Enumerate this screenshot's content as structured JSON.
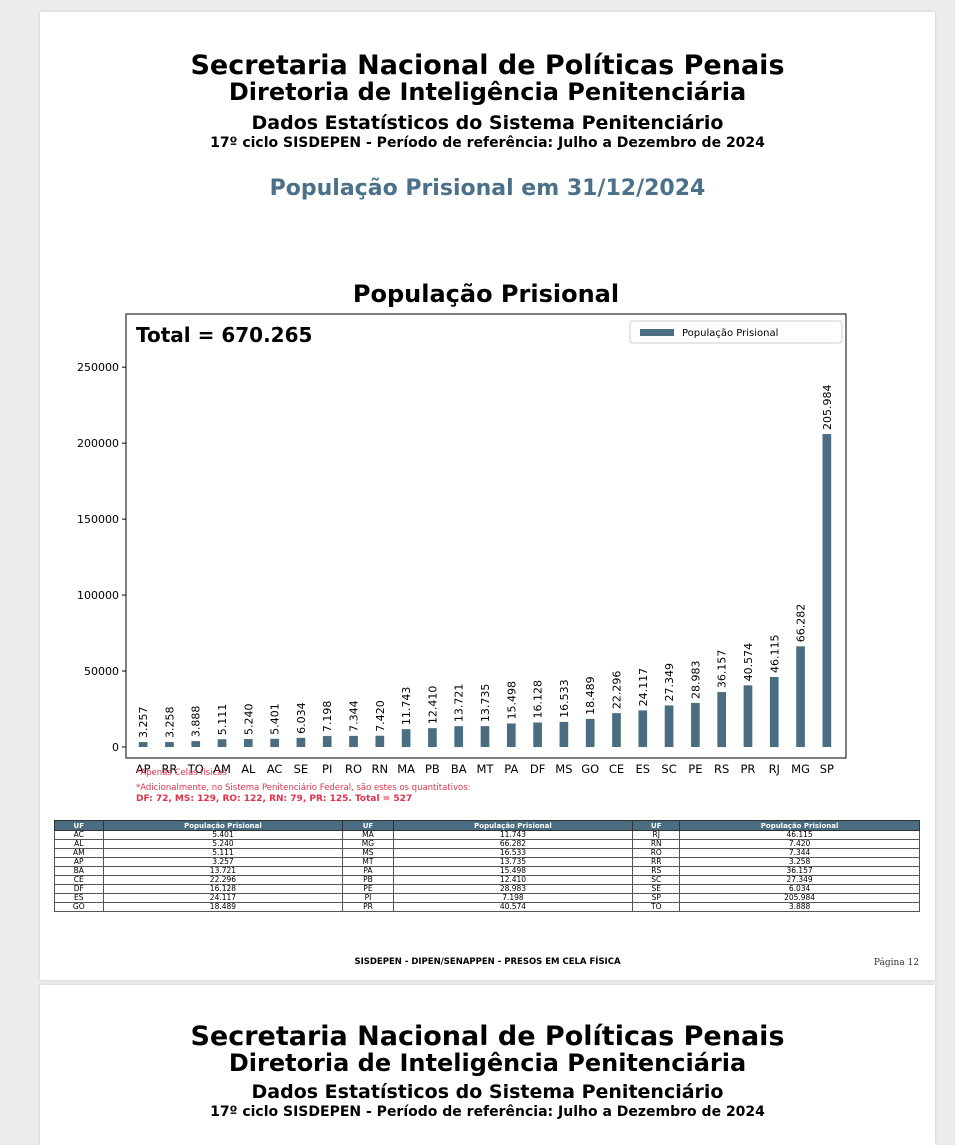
{
  "header": {
    "org": "Secretaria Nacional de Políticas Penais",
    "dept": "Diretoria de Inteligência Penitenciária",
    "report": "Dados Estatísticos do Sistema Penitenciário",
    "cycle": "17º ciclo SISDEPEN - Período de referência: Julho a Dezembro de 2024"
  },
  "subtitle": "População Prisional em 31/12/2024",
  "chart_data": {
    "type": "bar",
    "title": "População Prisional",
    "annotation": "Total = 670.265",
    "legend": "População Prisional",
    "legend_position": "top-right",
    "categories": [
      "AP",
      "RR",
      "TO",
      "AM",
      "AL",
      "AC",
      "SE",
      "PI",
      "RO",
      "RN",
      "MA",
      "PB",
      "BA",
      "MT",
      "PA",
      "DF",
      "MS",
      "GO",
      "CE",
      "ES",
      "SC",
      "PE",
      "RS",
      "PR",
      "RJ",
      "MG",
      "SP"
    ],
    "values": [
      3257,
      3258,
      3888,
      5111,
      5240,
      5401,
      6034,
      7198,
      7344,
      7420,
      11743,
      12410,
      13721,
      13735,
      15498,
      16128,
      16533,
      18489,
      22296,
      24117,
      27349,
      28983,
      36157,
      40574,
      46115,
      66282,
      205984
    ],
    "labels": [
      "3.257",
      "3.258",
      "3.888",
      "5.111",
      "5.240",
      "5.401",
      "6.034",
      "7.198",
      "7.344",
      "7.420",
      "11.743",
      "12.410",
      "13.721",
      "13.735",
      "15.498",
      "16.128",
      "16.533",
      "18.489",
      "22.296",
      "24.117",
      "27.349",
      "28.983",
      "36.157",
      "40.574",
      "46.115",
      "66.282",
      "205.984"
    ],
    "yticks": [
      0,
      50000,
      100000,
      150000,
      200000,
      250000
    ],
    "ylim": [
      0,
      285000
    ],
    "color": "#4b6d82"
  },
  "notes": {
    "line1": "*Apenas Celas físicas",
    "line2": "*Adicionalmente, no Sistema Penitenciário Federal, são estes os quantitativos:",
    "line3": "DF: 72, MS: 129, RO: 122, RN: 79, PR: 125. Total = 527"
  },
  "table": {
    "headers": [
      "UF",
      "População Prisional",
      "UF",
      "População Prisional",
      "UF",
      "População Prisional"
    ],
    "rows": [
      [
        "AC",
        "5.401",
        "MA",
        "11.743",
        "RJ",
        "46.115"
      ],
      [
        "AL",
        "5.240",
        "MG",
        "66.282",
        "RN",
        "7.420"
      ],
      [
        "AM",
        "5.111",
        "MS",
        "16.533",
        "RO",
        "7.344"
      ],
      [
        "AP",
        "3.257",
        "MT",
        "13.735",
        "RR",
        "3.258"
      ],
      [
        "BA",
        "13.721",
        "PA",
        "15.498",
        "RS",
        "36.157"
      ],
      [
        "CE",
        "22.296",
        "PB",
        "12.410",
        "SC",
        "27.349"
      ],
      [
        "DF",
        "16.128",
        "PE",
        "28.983",
        "SE",
        "6.034"
      ],
      [
        "ES",
        "24.117",
        "PI",
        "7.198",
        "SP",
        "205.984"
      ],
      [
        "GO",
        "18.489",
        "PR",
        "40.574",
        "TO",
        "3.888"
      ]
    ]
  },
  "footer": "SISDEPEN - DIPEN/SENAPPEN - PRESOS EM CELA FÍSICA",
  "page_number": "Página 12"
}
